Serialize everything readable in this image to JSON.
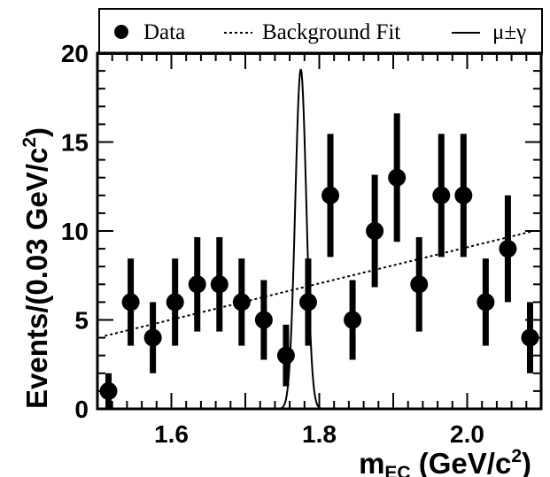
{
  "chart_data": {
    "type": "scatter",
    "ylabel_main": "Events/(0.03 GeV/c",
    "ylabel_sup": "2",
    "ylabel_close": ")",
    "xlabel_main": "m",
    "xlabel_sub": "EC",
    "xlabel_unit": " (GeV/c",
    "xlabel_sup": "2",
    "xlabel_close": ")",
    "xlim": [
      1.5,
      2.1
    ],
    "ylim": [
      0,
      20
    ],
    "xticks": [
      {
        "v": 1.6,
        "label": "1.6"
      },
      {
        "v": 1.8,
        "label": "1.8"
      },
      {
        "v": 2.0,
        "label": "2.0"
      }
    ],
    "yticks": [
      {
        "v": 0,
        "label": "0"
      },
      {
        "v": 5,
        "label": "5"
      },
      {
        "v": 10,
        "label": "10"
      },
      {
        "v": 15,
        "label": "15"
      },
      {
        "v": 20,
        "label": "20"
      }
    ],
    "grid": false,
    "legend": {
      "placement": "top",
      "data_label": "Data",
      "fit_label": "Background Fit",
      "signal_label": "μ±γ"
    },
    "series": [
      {
        "name": "Data",
        "x": [
          1.515,
          1.545,
          1.575,
          1.605,
          1.635,
          1.665,
          1.695,
          1.725,
          1.755,
          1.785,
          1.815,
          1.845,
          1.875,
          1.905,
          1.935,
          1.965,
          1.995,
          2.025,
          2.055,
          2.085
        ],
        "y": [
          1,
          6,
          4,
          6,
          7,
          7,
          6,
          5,
          3,
          6,
          12,
          5,
          10,
          13,
          7,
          12,
          12,
          6,
          9,
          4
        ],
        "err": [
          1.0,
          2.45,
          2.0,
          2.45,
          2.65,
          2.65,
          2.45,
          2.24,
          1.73,
          2.45,
          3.46,
          2.24,
          3.16,
          3.61,
          2.65,
          3.46,
          3.46,
          2.45,
          3.0,
          2.0
        ]
      },
      {
        "name": "Background Fit",
        "x": [
          1.51,
          2.09
        ],
        "y": [
          4.1,
          10.0
        ]
      },
      {
        "name": "μ±γ",
        "peak_x": 1.775,
        "peak_y": 19.1,
        "sigma": 0.0075
      }
    ]
  }
}
